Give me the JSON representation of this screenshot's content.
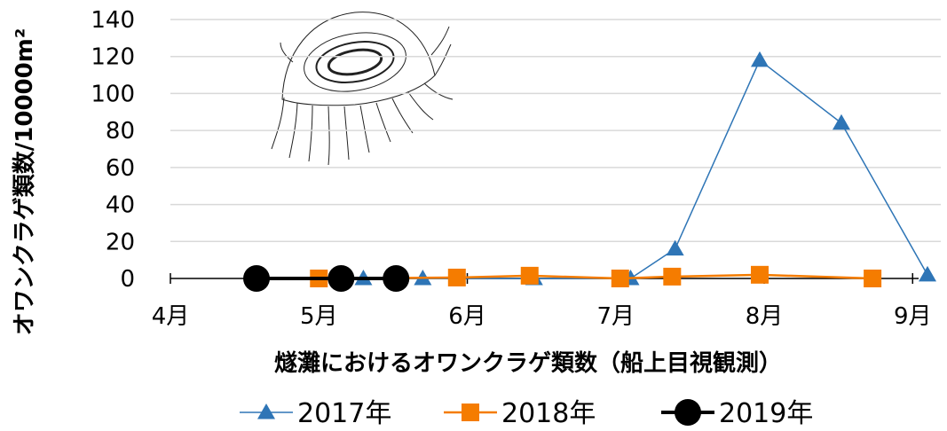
{
  "chart_data": {
    "type": "line",
    "title": "",
    "xlabel": "燧灘におけるオワンクラゲ類数（船上目視観測）",
    "ylabel": "オワンクラゲ類数/10000m²",
    "ylim": [
      0,
      140
    ],
    "yticks": [
      0,
      20,
      40,
      60,
      80,
      100,
      120,
      140
    ],
    "xlim": [
      4,
      9.1
    ],
    "xticks": [
      {
        "value": 4,
        "label": "4月"
      },
      {
        "value": 5,
        "label": "5月"
      },
      {
        "value": 6,
        "label": "6月"
      },
      {
        "value": 7,
        "label": "7月"
      },
      {
        "value": 8,
        "label": "8月"
      },
      {
        "value": 9,
        "label": "9月"
      }
    ],
    "grid": true,
    "legend_position": "bottom",
    "series": [
      {
        "name": "2017年",
        "color": "#2E75B6",
        "marker": "triangle",
        "x": [
          5.3,
          5.7,
          6.45,
          7.1,
          7.4,
          7.97,
          8.52,
          9.1
        ],
        "y": [
          0,
          0,
          0,
          0,
          16,
          118,
          84,
          2
        ]
      },
      {
        "name": "2018年",
        "color": "#F57C00",
        "marker": "square",
        "x": [
          5.0,
          5.93,
          6.42,
          7.03,
          7.38,
          7.97,
          8.73
        ],
        "y": [
          0,
          0.5,
          1.5,
          0,
          1,
          2,
          0
        ]
      },
      {
        "name": "2019年",
        "color": "#000000",
        "marker": "circle",
        "x": [
          4.58,
          5.15,
          5.52
        ],
        "y": [
          0,
          0,
          0
        ]
      }
    ]
  },
  "illustration": {
    "name": "jellyfish-illustration"
  }
}
